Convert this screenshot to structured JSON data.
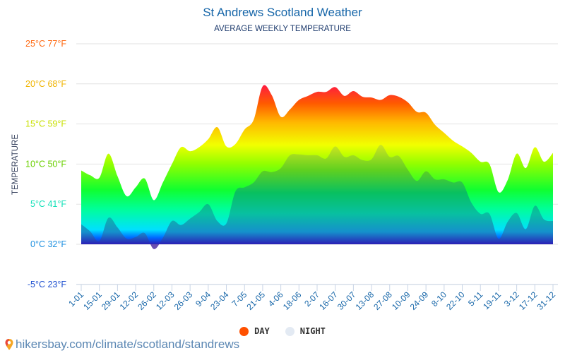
{
  "chart_data": {
    "type": "area",
    "title": "St Andrews Scotland Weather",
    "subtitle": "AVERAGE WEEKLY TEMPERATURE",
    "ylabel": "TEMPERATURE",
    "xlabel": "",
    "ylim": [
      -5,
      25
    ],
    "y_ticks": [
      {
        "value": 25,
        "label": "25°C 77°F",
        "color": "#ff6a13"
      },
      {
        "value": 20,
        "label": "20°C 68°F",
        "color": "#f0b400"
      },
      {
        "value": 15,
        "label": "15°C 59°F",
        "color": "#c8e000"
      },
      {
        "value": 10,
        "label": "10°C 50°F",
        "color": "#6ad000"
      },
      {
        "value": 5,
        "label": "5°C 41°F",
        "color": "#12e0b8"
      },
      {
        "value": 0,
        "label": "0°C 32°F",
        "color": "#1e90e0"
      },
      {
        "value": -5,
        "label": "-5°C 23°F",
        "color": "#1e50d0"
      }
    ],
    "x_tick_labels": [
      "1-01",
      "15-01",
      "29-01",
      "12-02",
      "26-02",
      "12-03",
      "26-03",
      "9-04",
      "23-04",
      "7-05",
      "21-05",
      "4-06",
      "18-06",
      "2-07",
      "16-07",
      "30-07",
      "13-08",
      "27-08",
      "10-09",
      "24-09",
      "8-10",
      "22-10",
      "5-11",
      "19-11",
      "3-12",
      "17-12",
      "31-12"
    ],
    "grid": true,
    "legend_position": "bottom",
    "series": [
      {
        "name": "DAY",
        "color": "#ff5000",
        "values": [
          9.2,
          8.6,
          8.3,
          11.3,
          8.5,
          6.0,
          7.1,
          8.2,
          5.5,
          7.7,
          10.0,
          12.1,
          11.6,
          12.1,
          13.1,
          14.6,
          12.2,
          12.5,
          14.3,
          15.5,
          19.7,
          18.6,
          15.9,
          16.8,
          18.0,
          18.5,
          19.0,
          19.0,
          19.6,
          18.5,
          19.1,
          18.4,
          18.3,
          18.0,
          18.6,
          18.4,
          17.7,
          16.5,
          16.4,
          14.9,
          13.9,
          12.9,
          12.2,
          11.4,
          10.3,
          10.0,
          6.5,
          8.0,
          11.3,
          9.5,
          12.1,
          10.3,
          11.4
        ]
      },
      {
        "name": "NIGHT",
        "color": "#e3eaf3",
        "values": [
          2.5,
          1.6,
          0.4,
          3.3,
          2.1,
          0.7,
          0.9,
          1.4,
          -0.6,
          0.8,
          2.9,
          2.4,
          3.2,
          4.0,
          5.0,
          2.9,
          2.6,
          6.6,
          7.1,
          7.7,
          9.1,
          9.0,
          9.5,
          11.1,
          11.2,
          11.1,
          11.1,
          10.7,
          12.2,
          10.9,
          11.1,
          10.5,
          10.6,
          12.4,
          10.9,
          11.0,
          9.3,
          7.9,
          9.1,
          8.1,
          8.1,
          7.7,
          7.7,
          5.2,
          3.8,
          3.8,
          0.7,
          2.8,
          3.9,
          1.9,
          4.8,
          3.1,
          2.9
        ]
      }
    ]
  },
  "footer": {
    "text": "hikersbay.com/climate/scotland/standrews",
    "icon": "map-pin-icon"
  }
}
